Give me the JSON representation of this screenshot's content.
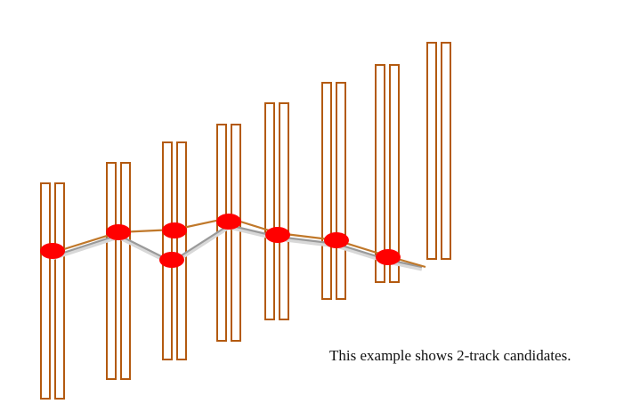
{
  "caption": "This example shows 2-track candidates.",
  "colors": {
    "layer_stroke": "#b35a10",
    "hit_fill": "#ff0000",
    "track_a": "#c0782a",
    "track_b": "#9a9a9a"
  },
  "detector_layers": 8,
  "hits_per_layer": [
    1,
    1,
    2,
    1,
    1,
    1,
    1,
    0
  ],
  "track_candidates": [
    {
      "name": "",
      "hit_layers": [
        0,
        1,
        2,
        3,
        4,
        5,
        6
      ],
      "branch_at_layer2": "upper"
    },
    {
      "name": "",
      "hit_layers": [
        0,
        1,
        2,
        3,
        4,
        5,
        6
      ],
      "branch_at_layer2": "lower"
    }
  ]
}
